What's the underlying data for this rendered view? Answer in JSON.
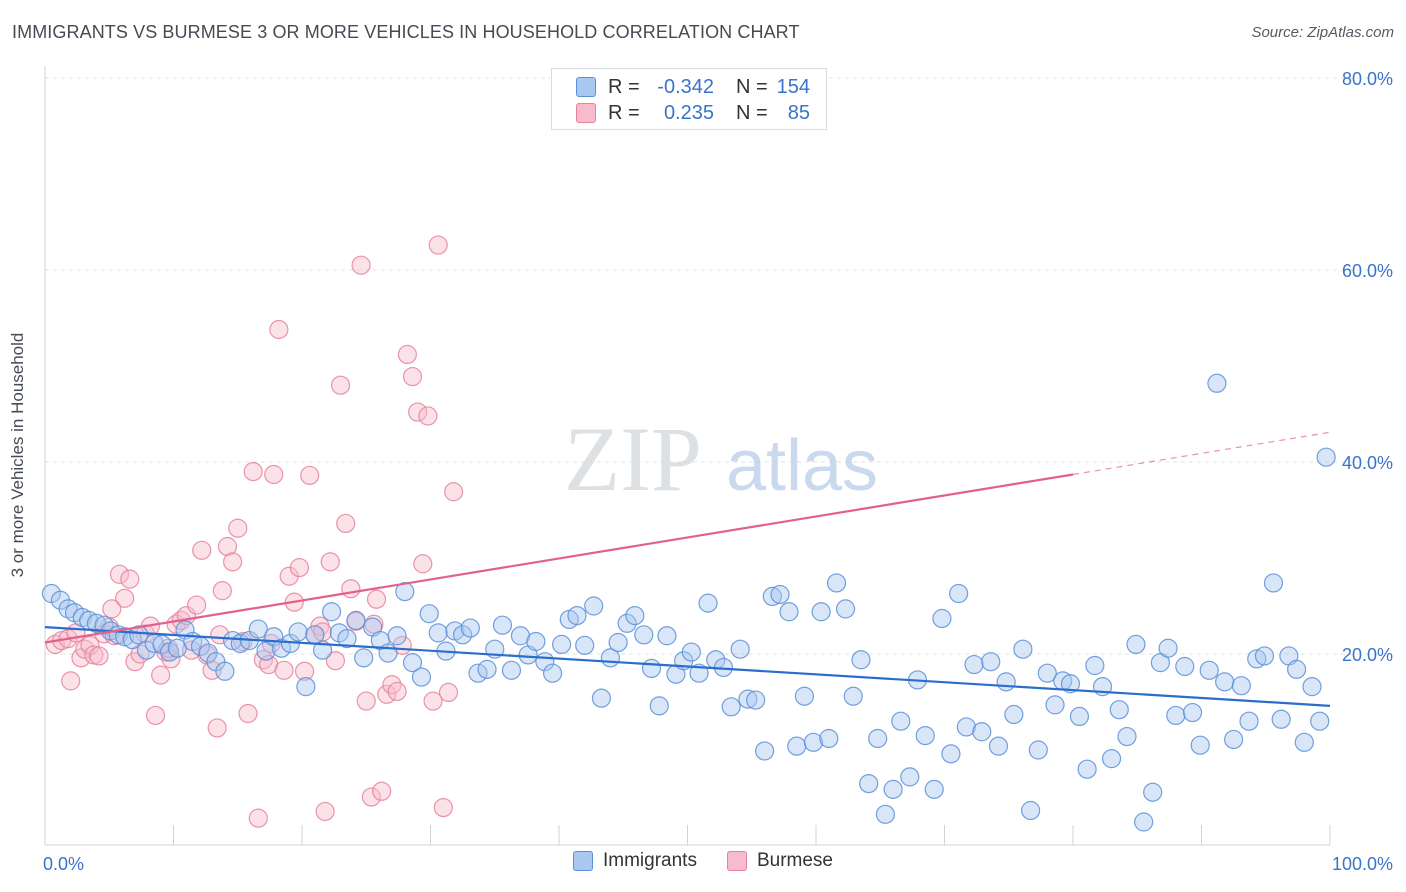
{
  "header": {
    "title": "IMMIGRANTS VS BURMESE 3 OR MORE VEHICLES IN HOUSEHOLD CORRELATION CHART",
    "source": "Source: ZipAtlas.com"
  },
  "watermark": {
    "zip": "ZIP",
    "atlas": "atlas"
  },
  "legend_top": {
    "rows": [
      {
        "r_label": "R =",
        "r_value": "-0.342",
        "n_label": "N =",
        "n_value": "154"
      },
      {
        "r_label": "R =",
        "r_value": "0.235",
        "n_label": "N =",
        "n_value": "85"
      }
    ]
  },
  "colors": {
    "immigrants_fill": "#a9c8ef",
    "immigrants_stroke": "#5b8fd8",
    "immigrants_line": "#2a6dcc",
    "burmese_fill": "#f6bccd",
    "burmese_stroke": "#e8819e",
    "burmese_line": "#e2618a",
    "axis_label": "#3a74c9"
  },
  "chart_data": {
    "type": "scatter",
    "title": "IMMIGRANTS VS BURMESE 3 OR MORE VEHICLES IN HOUSEHOLD CORRELATION CHART",
    "xlabel": "",
    "ylabel": "3 or more Vehicles in Household",
    "xlim": [
      0,
      100
    ],
    "ylim": [
      0,
      82
    ],
    "x_tick_labels": [
      "0.0%",
      "100.0%"
    ],
    "y_ticks": [
      20,
      40,
      60,
      80
    ],
    "y_tick_labels": [
      "20.0%",
      "40.0%",
      "60.0%",
      "80.0%"
    ],
    "grid": "horizontal dashed",
    "legend_position": "bottom",
    "series": [
      {
        "name": "Immigrants",
        "r": -0.342,
        "n": 154,
        "trend": {
          "x": [
            0,
            100
          ],
          "y": [
            22.8,
            14.6
          ]
        },
        "points": [
          [
            0.5,
            26.3
          ],
          [
            1.2,
            25.6
          ],
          [
            1.8,
            24.7
          ],
          [
            2.3,
            24.3
          ],
          [
            2.9,
            23.8
          ],
          [
            3.4,
            23.5
          ],
          [
            4.0,
            23.2
          ],
          [
            4.6,
            23.0
          ],
          [
            5.1,
            22.4
          ],
          [
            5.7,
            22.0
          ],
          [
            6.2,
            21.8
          ],
          [
            6.8,
            21.5
          ],
          [
            7.3,
            22.0
          ],
          [
            7.9,
            20.4
          ],
          [
            8.5,
            21.1
          ],
          [
            9.1,
            21.0
          ],
          [
            9.7,
            20.2
          ],
          [
            10.3,
            20.6
          ],
          [
            10.9,
            22.5
          ],
          [
            11.5,
            21.3
          ],
          [
            12.1,
            20.8
          ],
          [
            12.7,
            20.1
          ],
          [
            13.3,
            19.2
          ],
          [
            14.0,
            18.2
          ],
          [
            14.6,
            21.4
          ],
          [
            15.2,
            21.1
          ],
          [
            15.9,
            21.4
          ],
          [
            16.6,
            22.6
          ],
          [
            17.2,
            20.3
          ],
          [
            17.8,
            21.8
          ],
          [
            18.4,
            20.6
          ],
          [
            19.1,
            21.1
          ],
          [
            19.7,
            22.3
          ],
          [
            20.3,
            16.6
          ],
          [
            21.0,
            22.0
          ],
          [
            21.6,
            20.4
          ],
          [
            22.3,
            24.4
          ],
          [
            22.9,
            22.2
          ],
          [
            23.5,
            21.6
          ],
          [
            24.2,
            23.5
          ],
          [
            24.8,
            19.6
          ],
          [
            25.5,
            22.8
          ],
          [
            26.1,
            21.4
          ],
          [
            26.7,
            20.1
          ],
          [
            27.4,
            21.9
          ],
          [
            28.0,
            26.5
          ],
          [
            28.6,
            19.1
          ],
          [
            29.3,
            17.6
          ],
          [
            29.9,
            24.2
          ],
          [
            30.6,
            22.2
          ],
          [
            31.2,
            20.3
          ],
          [
            31.9,
            22.4
          ],
          [
            32.5,
            22.0
          ],
          [
            33.1,
            22.7
          ],
          [
            33.7,
            18.0
          ],
          [
            34.4,
            18.4
          ],
          [
            35.0,
            20.5
          ],
          [
            35.6,
            23.0
          ],
          [
            36.3,
            18.3
          ],
          [
            37.0,
            21.9
          ],
          [
            37.6,
            19.9
          ],
          [
            38.2,
            21.3
          ],
          [
            38.9,
            19.2
          ],
          [
            39.5,
            18.0
          ],
          [
            40.2,
            21.0
          ],
          [
            40.8,
            23.6
          ],
          [
            41.4,
            24.0
          ],
          [
            42.0,
            20.9
          ],
          [
            42.7,
            25.0
          ],
          [
            43.3,
            15.4
          ],
          [
            44.0,
            19.6
          ],
          [
            44.6,
            21.2
          ],
          [
            45.3,
            23.2
          ],
          [
            45.9,
            24.0
          ],
          [
            46.6,
            22.0
          ],
          [
            47.2,
            18.5
          ],
          [
            47.8,
            14.6
          ],
          [
            48.4,
            21.9
          ],
          [
            49.1,
            17.9
          ],
          [
            49.7,
            19.3
          ],
          [
            50.3,
            20.2
          ],
          [
            50.9,
            18.0
          ],
          [
            51.6,
            25.3
          ],
          [
            52.2,
            19.4
          ],
          [
            52.8,
            18.6
          ],
          [
            53.4,
            14.5
          ],
          [
            54.1,
            20.5
          ],
          [
            54.7,
            15.3
          ],
          [
            55.3,
            15.2
          ],
          [
            56.0,
            9.9
          ],
          [
            56.6,
            26.0
          ],
          [
            57.2,
            26.2
          ],
          [
            57.9,
            24.4
          ],
          [
            58.5,
            10.4
          ],
          [
            59.1,
            15.6
          ],
          [
            59.8,
            10.8
          ],
          [
            60.4,
            24.4
          ],
          [
            61.0,
            11.2
          ],
          [
            61.6,
            27.4
          ],
          [
            62.3,
            24.7
          ],
          [
            62.9,
            15.6
          ],
          [
            63.5,
            19.4
          ],
          [
            64.1,
            6.5
          ],
          [
            64.8,
            11.2
          ],
          [
            65.4,
            3.3
          ],
          [
            66.0,
            5.9
          ],
          [
            66.6,
            13.0
          ],
          [
            67.3,
            7.2
          ],
          [
            67.9,
            17.3
          ],
          [
            68.5,
            11.5
          ],
          [
            69.2,
            5.9
          ],
          [
            69.8,
            23.7
          ],
          [
            70.5,
            9.6
          ],
          [
            71.1,
            26.3
          ],
          [
            71.7,
            12.4
          ],
          [
            72.3,
            18.9
          ],
          [
            72.9,
            11.9
          ],
          [
            73.6,
            19.2
          ],
          [
            74.2,
            10.4
          ],
          [
            74.8,
            17.1
          ],
          [
            75.4,
            13.7
          ],
          [
            76.1,
            20.5
          ],
          [
            76.7,
            3.7
          ],
          [
            77.3,
            10.0
          ],
          [
            78.0,
            18.0
          ],
          [
            78.6,
            14.7
          ],
          [
            79.2,
            17.2
          ],
          [
            79.8,
            16.9
          ],
          [
            80.5,
            13.5
          ],
          [
            81.1,
            8.0
          ],
          [
            81.7,
            18.8
          ],
          [
            82.3,
            16.6
          ],
          [
            83.0,
            9.1
          ],
          [
            83.6,
            14.2
          ],
          [
            84.2,
            11.4
          ],
          [
            84.9,
            21.0
          ],
          [
            85.5,
            2.5
          ],
          [
            86.2,
            5.6
          ],
          [
            86.8,
            19.1
          ],
          [
            87.4,
            20.6
          ],
          [
            88.0,
            13.6
          ],
          [
            88.7,
            18.7
          ],
          [
            89.3,
            13.9
          ],
          [
            89.9,
            10.5
          ],
          [
            90.6,
            18.3
          ],
          [
            91.2,
            48.2
          ],
          [
            91.8,
            17.1
          ],
          [
            92.5,
            11.1
          ],
          [
            93.1,
            16.7
          ],
          [
            93.7,
            13.0
          ],
          [
            94.3,
            19.5
          ],
          [
            94.9,
            19.8
          ],
          [
            95.6,
            27.4
          ],
          [
            96.2,
            13.2
          ],
          [
            96.8,
            19.8
          ],
          [
            97.4,
            18.4
          ],
          [
            98.0,
            10.8
          ],
          [
            98.6,
            16.6
          ],
          [
            99.2,
            13.0
          ],
          [
            99.7,
            40.5
          ]
        ]
      },
      {
        "name": "Burmese",
        "r": 0.235,
        "n": 85,
        "trend": {
          "x": [
            0,
            80,
            100
          ],
          "y": [
            21.2,
            38.7,
            43.1
          ]
        },
        "points": [
          [
            0.8,
            21.0
          ],
          [
            1.3,
            21.4
          ],
          [
            1.8,
            21.6
          ],
          [
            2.0,
            17.2
          ],
          [
            2.4,
            22.2
          ],
          [
            2.8,
            19.6
          ],
          [
            3.1,
            20.5
          ],
          [
            3.5,
            20.9
          ],
          [
            3.8,
            19.9
          ],
          [
            4.2,
            19.8
          ],
          [
            4.6,
            22.1
          ],
          [
            5.0,
            22.8
          ],
          [
            5.4,
            21.9
          ],
          [
            5.8,
            28.3
          ],
          [
            6.2,
            25.8
          ],
          [
            6.6,
            27.8
          ],
          [
            7.0,
            19.2
          ],
          [
            7.4,
            20.0
          ],
          [
            7.8,
            22.1
          ],
          [
            8.2,
            22.9
          ],
          [
            8.6,
            13.6
          ],
          [
            9.0,
            17.8
          ],
          [
            9.4,
            20.2
          ],
          [
            9.8,
            19.5
          ],
          [
            10.2,
            23.1
          ],
          [
            10.6,
            23.5
          ],
          [
            11.0,
            24.0
          ],
          [
            11.4,
            20.4
          ],
          [
            11.8,
            25.1
          ],
          [
            12.2,
            30.8
          ],
          [
            12.6,
            19.9
          ],
          [
            13.0,
            18.3
          ],
          [
            13.4,
            12.3
          ],
          [
            13.8,
            26.6
          ],
          [
            14.2,
            31.2
          ],
          [
            14.6,
            29.6
          ],
          [
            15.0,
            33.1
          ],
          [
            15.4,
            21.3
          ],
          [
            15.8,
            13.8
          ],
          [
            16.2,
            39.0
          ],
          [
            16.6,
            2.9
          ],
          [
            17.0,
            19.4
          ],
          [
            17.4,
            18.9
          ],
          [
            17.8,
            38.7
          ],
          [
            18.2,
            53.8
          ],
          [
            18.6,
            18.3
          ],
          [
            19.0,
            28.1
          ],
          [
            19.4,
            25.4
          ],
          [
            19.8,
            29.0
          ],
          [
            20.2,
            18.2
          ],
          [
            20.6,
            38.6
          ],
          [
            21.0,
            22.0
          ],
          [
            21.4,
            22.9
          ],
          [
            21.8,
            3.6
          ],
          [
            22.2,
            29.6
          ],
          [
            22.6,
            19.3
          ],
          [
            23.0,
            48.0
          ],
          [
            23.4,
            33.6
          ],
          [
            23.8,
            26.8
          ],
          [
            24.2,
            23.4
          ],
          [
            24.6,
            60.5
          ],
          [
            25.0,
            15.1
          ],
          [
            25.4,
            5.1
          ],
          [
            25.8,
            25.7
          ],
          [
            26.2,
            5.7
          ],
          [
            26.6,
            15.8
          ],
          [
            27.0,
            16.8
          ],
          [
            27.4,
            16.1
          ],
          [
            27.8,
            20.9
          ],
          [
            28.2,
            51.2
          ],
          [
            28.6,
            48.9
          ],
          [
            29.0,
            45.2
          ],
          [
            29.4,
            29.4
          ],
          [
            29.8,
            44.8
          ],
          [
            30.2,
            15.1
          ],
          [
            30.6,
            62.6
          ],
          [
            31.0,
            4.0
          ],
          [
            31.4,
            16.0
          ],
          [
            31.8,
            36.9
          ],
          [
            5.2,
            24.7
          ],
          [
            9.6,
            20.6
          ],
          [
            13.6,
            22.0
          ],
          [
            17.6,
            21.1
          ],
          [
            21.6,
            22.3
          ],
          [
            25.6,
            23.1
          ]
        ]
      }
    ]
  },
  "legend_bottom": {
    "items": [
      "Immigrants",
      "Burmese"
    ]
  }
}
